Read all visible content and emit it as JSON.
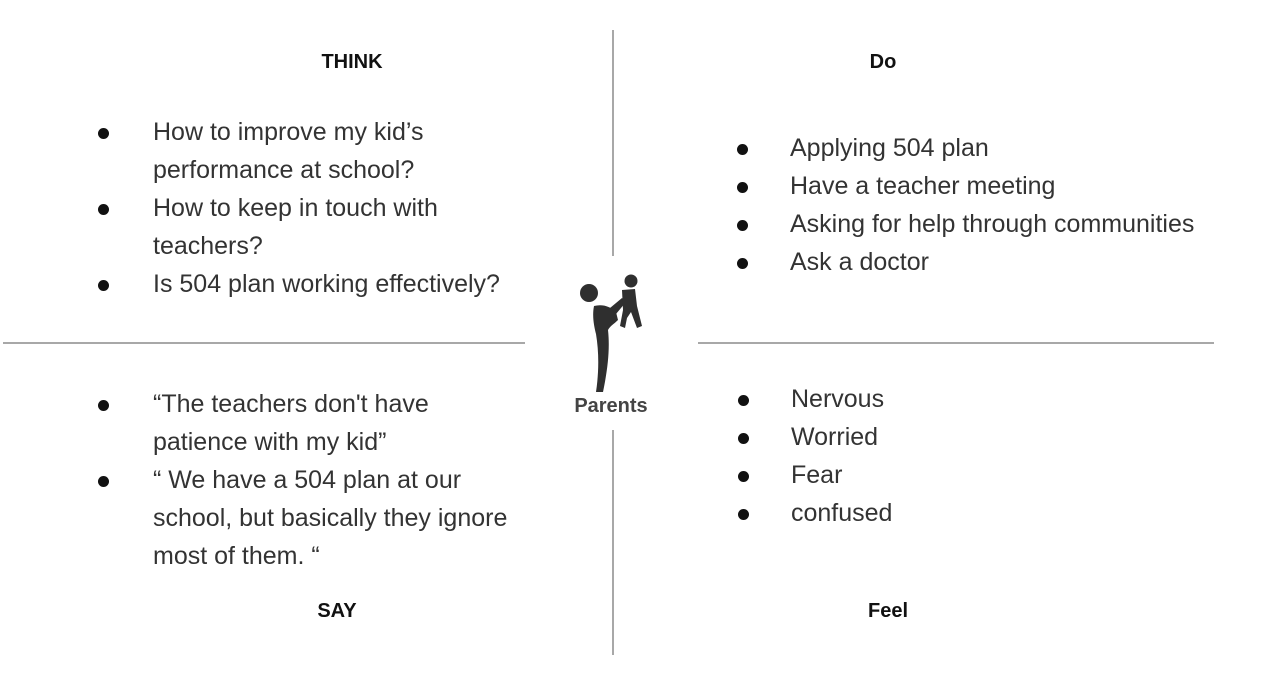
{
  "quadrants": {
    "think": {
      "title": "THINK",
      "items": [
        "How to improve my kid’s performance at school?",
        "How to keep in touch with teachers?",
        "Is 504 plan working effectively?"
      ]
    },
    "do": {
      "title": "Do",
      "items": [
        "Applying 504 plan",
        "Have a teacher meeting",
        "Asking for help through communities",
        "Ask a doctor"
      ]
    },
    "say": {
      "title": "SAY",
      "items": [
        "“The teachers don't have patience with my kid”",
        "“ We have a 504 plan at our school, but basically they ignore most of them. “"
      ]
    },
    "feel": {
      "title": "Feel",
      "items": [
        "Nervous",
        "Worried",
        "Fear",
        "confused"
      ]
    }
  },
  "center": {
    "label": "Parents",
    "icon": "parent-lifting-child-icon"
  },
  "colors": {
    "divider": "#a8a8a8",
    "figure": "#2f2f2f",
    "text": "#333333"
  }
}
